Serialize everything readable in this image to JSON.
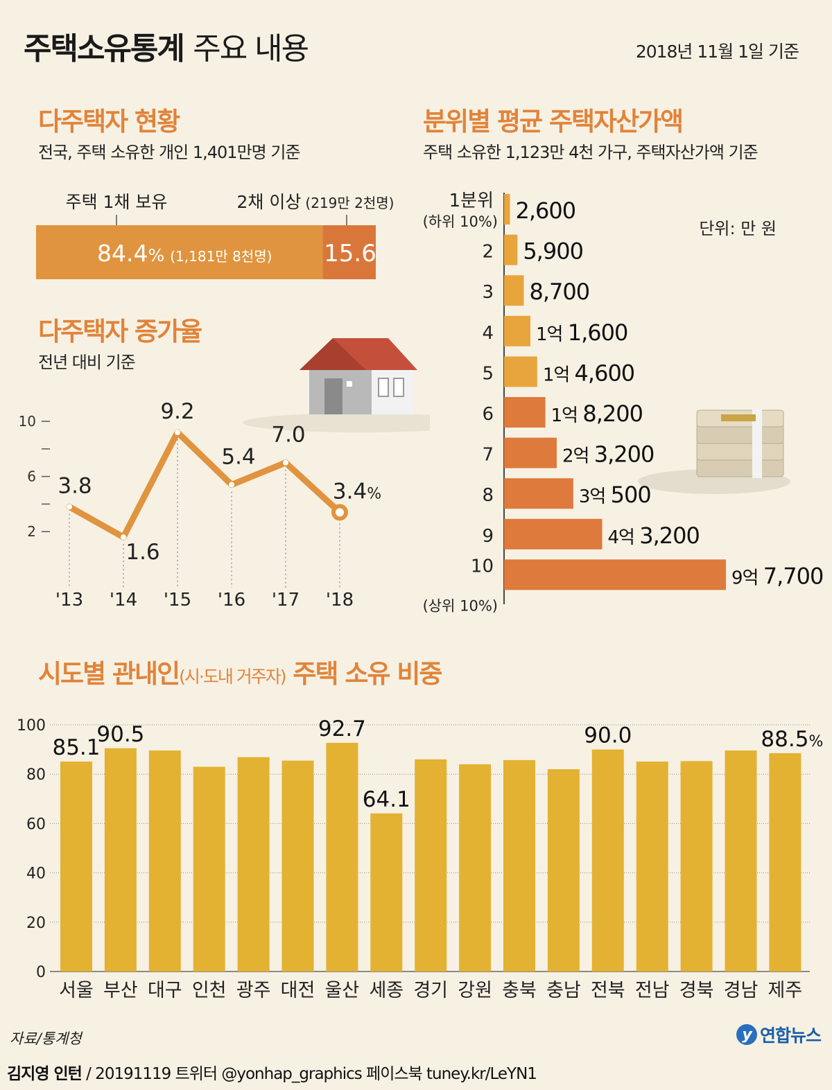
{
  "header": {
    "title_bold": "주택소유통계",
    "title_light": "주요 내용",
    "basis_date": "2018년 11월 1일 기준"
  },
  "multi_owner": {
    "title": "다주택자 현황",
    "subtitle": "전국, 주택 소유한 개인 1,401만명 기준",
    "label_one": "주택 1채 보유",
    "label_two": "2채 이상",
    "label_two_sub": "(219만 2천명)",
    "value_one": "84.4",
    "value_one_unit": "%",
    "value_one_sub": "(1,181만 8천명)",
    "value_two": "15.6"
  },
  "growth": {
    "title": "다주택자 증가율",
    "subtitle": "전년 대비 기준"
  },
  "asset": {
    "title": "분위별 평균 주택자산가액",
    "subtitle": "주택 소유한 1,123만 4천 가구, 주택자산가액 기준",
    "unit": "단위: 만 원"
  },
  "region": {
    "title_bold1": "시도별 관내인",
    "title_small": "(시·도내 거주자)",
    "title_bold2": "주택 소유 비중"
  },
  "footer": {
    "source": "자료/통계청",
    "author": "김지영 인턴",
    "credit_rest": "/ 20191119 트위터 @yonhap_graphics  페이스북 tuney.kr/LeYN1",
    "logo": "연합뉴스",
    "logo_mark": "y"
  },
  "chart_data": [
    {
      "type": "bar",
      "title": "다주택자 현황",
      "orientation": "horizontal-stacked",
      "categories": [
        "주택 1채 보유",
        "2채 이상"
      ],
      "values": [
        84.4,
        15.6
      ],
      "colors": [
        "#e0943f",
        "#d9773a"
      ]
    },
    {
      "type": "line",
      "title": "다주택자 증가율",
      "x": [
        "'13",
        "'14",
        "'15",
        "'16",
        "'17",
        "'18"
      ],
      "values": [
        3.8,
        1.6,
        9.2,
        5.4,
        7.0,
        3.4
      ],
      "labels": [
        "3.8",
        "1.6",
        "9.2",
        "5.4",
        "7.0",
        "3.4"
      ],
      "last_unit": "%",
      "yticks": [
        "2",
        "6",
        "10"
      ],
      "ylim": [
        0,
        10
      ],
      "color": "#e0943f"
    },
    {
      "type": "bar",
      "title": "분위별 평균 주택자산가액",
      "orientation": "horizontal",
      "categories": [
        "1분위",
        "2",
        "3",
        "4",
        "5",
        "6",
        "7",
        "8",
        "9",
        "10"
      ],
      "category_subs": [
        "(하위 10%)",
        "",
        "",
        "",
        "",
        "",
        "",
        "",
        "",
        "(상위 10%)"
      ],
      "values": [
        2600,
        5900,
        8700,
        11600,
        14600,
        18200,
        23200,
        30500,
        43200,
        97700
      ],
      "labels": [
        [
          "",
          "2,600"
        ],
        [
          "",
          "5,900"
        ],
        [
          "",
          "8,700"
        ],
        [
          "1억 ",
          "1,600"
        ],
        [
          "1억 ",
          "4,600"
        ],
        [
          "1억 ",
          "8,200"
        ],
        [
          "2억 ",
          "3,200"
        ],
        [
          "3억 ",
          "500"
        ],
        [
          "4억 ",
          "3,200"
        ],
        [
          "9억 ",
          "7,700"
        ]
      ],
      "unit": "만 원",
      "color_low": "#e8a53d",
      "color_high": "#de7a3b"
    },
    {
      "type": "bar",
      "title": "시도별 관내인 주택 소유 비중",
      "categories": [
        "서울",
        "부산",
        "대구",
        "인천",
        "광주",
        "대전",
        "울산",
        "세종",
        "경기",
        "강원",
        "충북",
        "충남",
        "전북",
        "전남",
        "경북",
        "경남",
        "제주"
      ],
      "values": [
        85.1,
        90.5,
        89.6,
        83.0,
        86.9,
        85.5,
        92.7,
        64.1,
        86.0,
        84.0,
        85.7,
        82.0,
        90.0,
        85.1,
        85.3,
        89.6,
        88.5
      ],
      "labels": [
        "85.1",
        "90.5",
        "",
        "",
        "",
        "",
        "92.7",
        "64.1",
        "",
        "",
        "",
        "",
        "90.0",
        "",
        "",
        "",
        "88.5"
      ],
      "last_unit": "%",
      "yticks": [
        "0",
        "20",
        "40",
        "60",
        "80",
        "100"
      ],
      "ylim": [
        0,
        100
      ],
      "color": "#e3b232"
    }
  ]
}
